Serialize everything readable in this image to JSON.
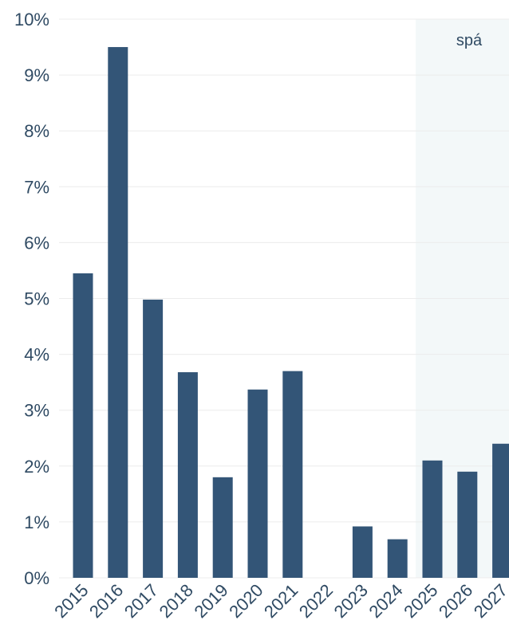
{
  "chart_data": {
    "type": "bar",
    "categories": [
      "2015",
      "2016",
      "2017",
      "2018",
      "2019",
      "2020",
      "2021",
      "2022",
      "2023",
      "2024",
      "2025",
      "2026",
      "2027"
    ],
    "values": [
      5.45,
      9.5,
      4.98,
      3.68,
      1.8,
      3.37,
      3.7,
      0,
      0.92,
      0.69,
      2.1,
      1.9,
      2.4
    ],
    "ylim": [
      0,
      10
    ],
    "yticks": [
      0,
      1,
      2,
      3,
      4,
      5,
      6,
      7,
      8,
      9,
      10
    ],
    "ytick_labels": [
      "0%",
      "1%",
      "2%",
      "3%",
      "4%",
      "5%",
      "6%",
      "7%",
      "8%",
      "9%",
      "10%"
    ],
    "forecast_band": {
      "label": "spá",
      "from_category": "2025",
      "to_category": "2027"
    },
    "title": "",
    "xlabel": "",
    "ylabel": "",
    "grid": true,
    "colors": {
      "bar": "#335577",
      "grid": "#ececec",
      "band": "#f3f8f9",
      "text": "#2f4a63"
    }
  }
}
